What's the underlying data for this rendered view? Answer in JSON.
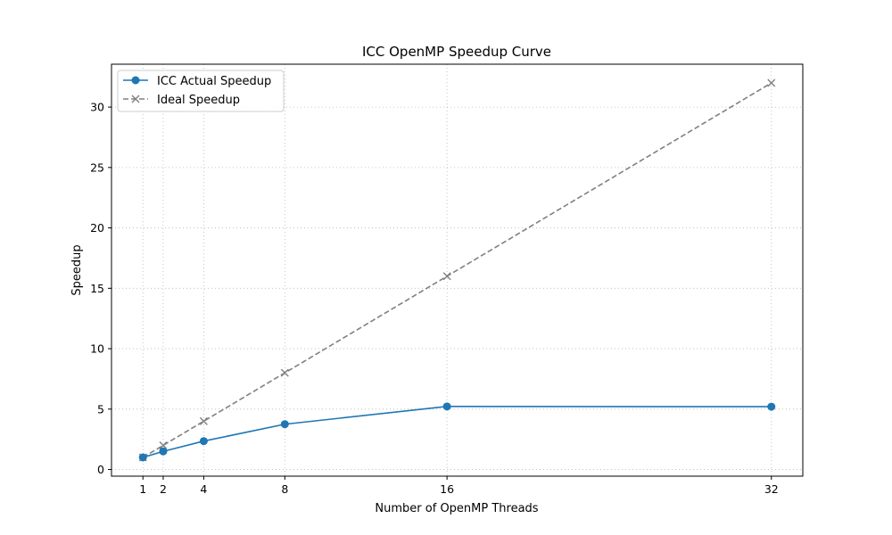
{
  "chart_data": {
    "type": "line",
    "title": "ICC OpenMP Speedup Curve",
    "xlabel": "Number of OpenMP Threads",
    "ylabel": "Speedup",
    "x": [
      1,
      2,
      4,
      8,
      16,
      32
    ],
    "xticks": [
      1,
      2,
      4,
      8,
      16,
      32
    ],
    "yticks": [
      0,
      5,
      10,
      15,
      20,
      25,
      30
    ],
    "xlim": [
      -0.55,
      33.55
    ],
    "ylim": [
      -0.55,
      33.55
    ],
    "grid": true,
    "legend_position": "top-left",
    "series": [
      {
        "name": "ICC Actual Speedup",
        "values": [
          1.0,
          1.5,
          2.35,
          3.75,
          5.22,
          5.2
        ],
        "color": "#1f77b4",
        "marker": "circle",
        "linestyle": "solid"
      },
      {
        "name": "Ideal Speedup",
        "values": [
          1,
          2,
          4,
          8,
          16,
          32
        ],
        "color": "#808080",
        "marker": "x",
        "linestyle": "dashed"
      }
    ]
  }
}
